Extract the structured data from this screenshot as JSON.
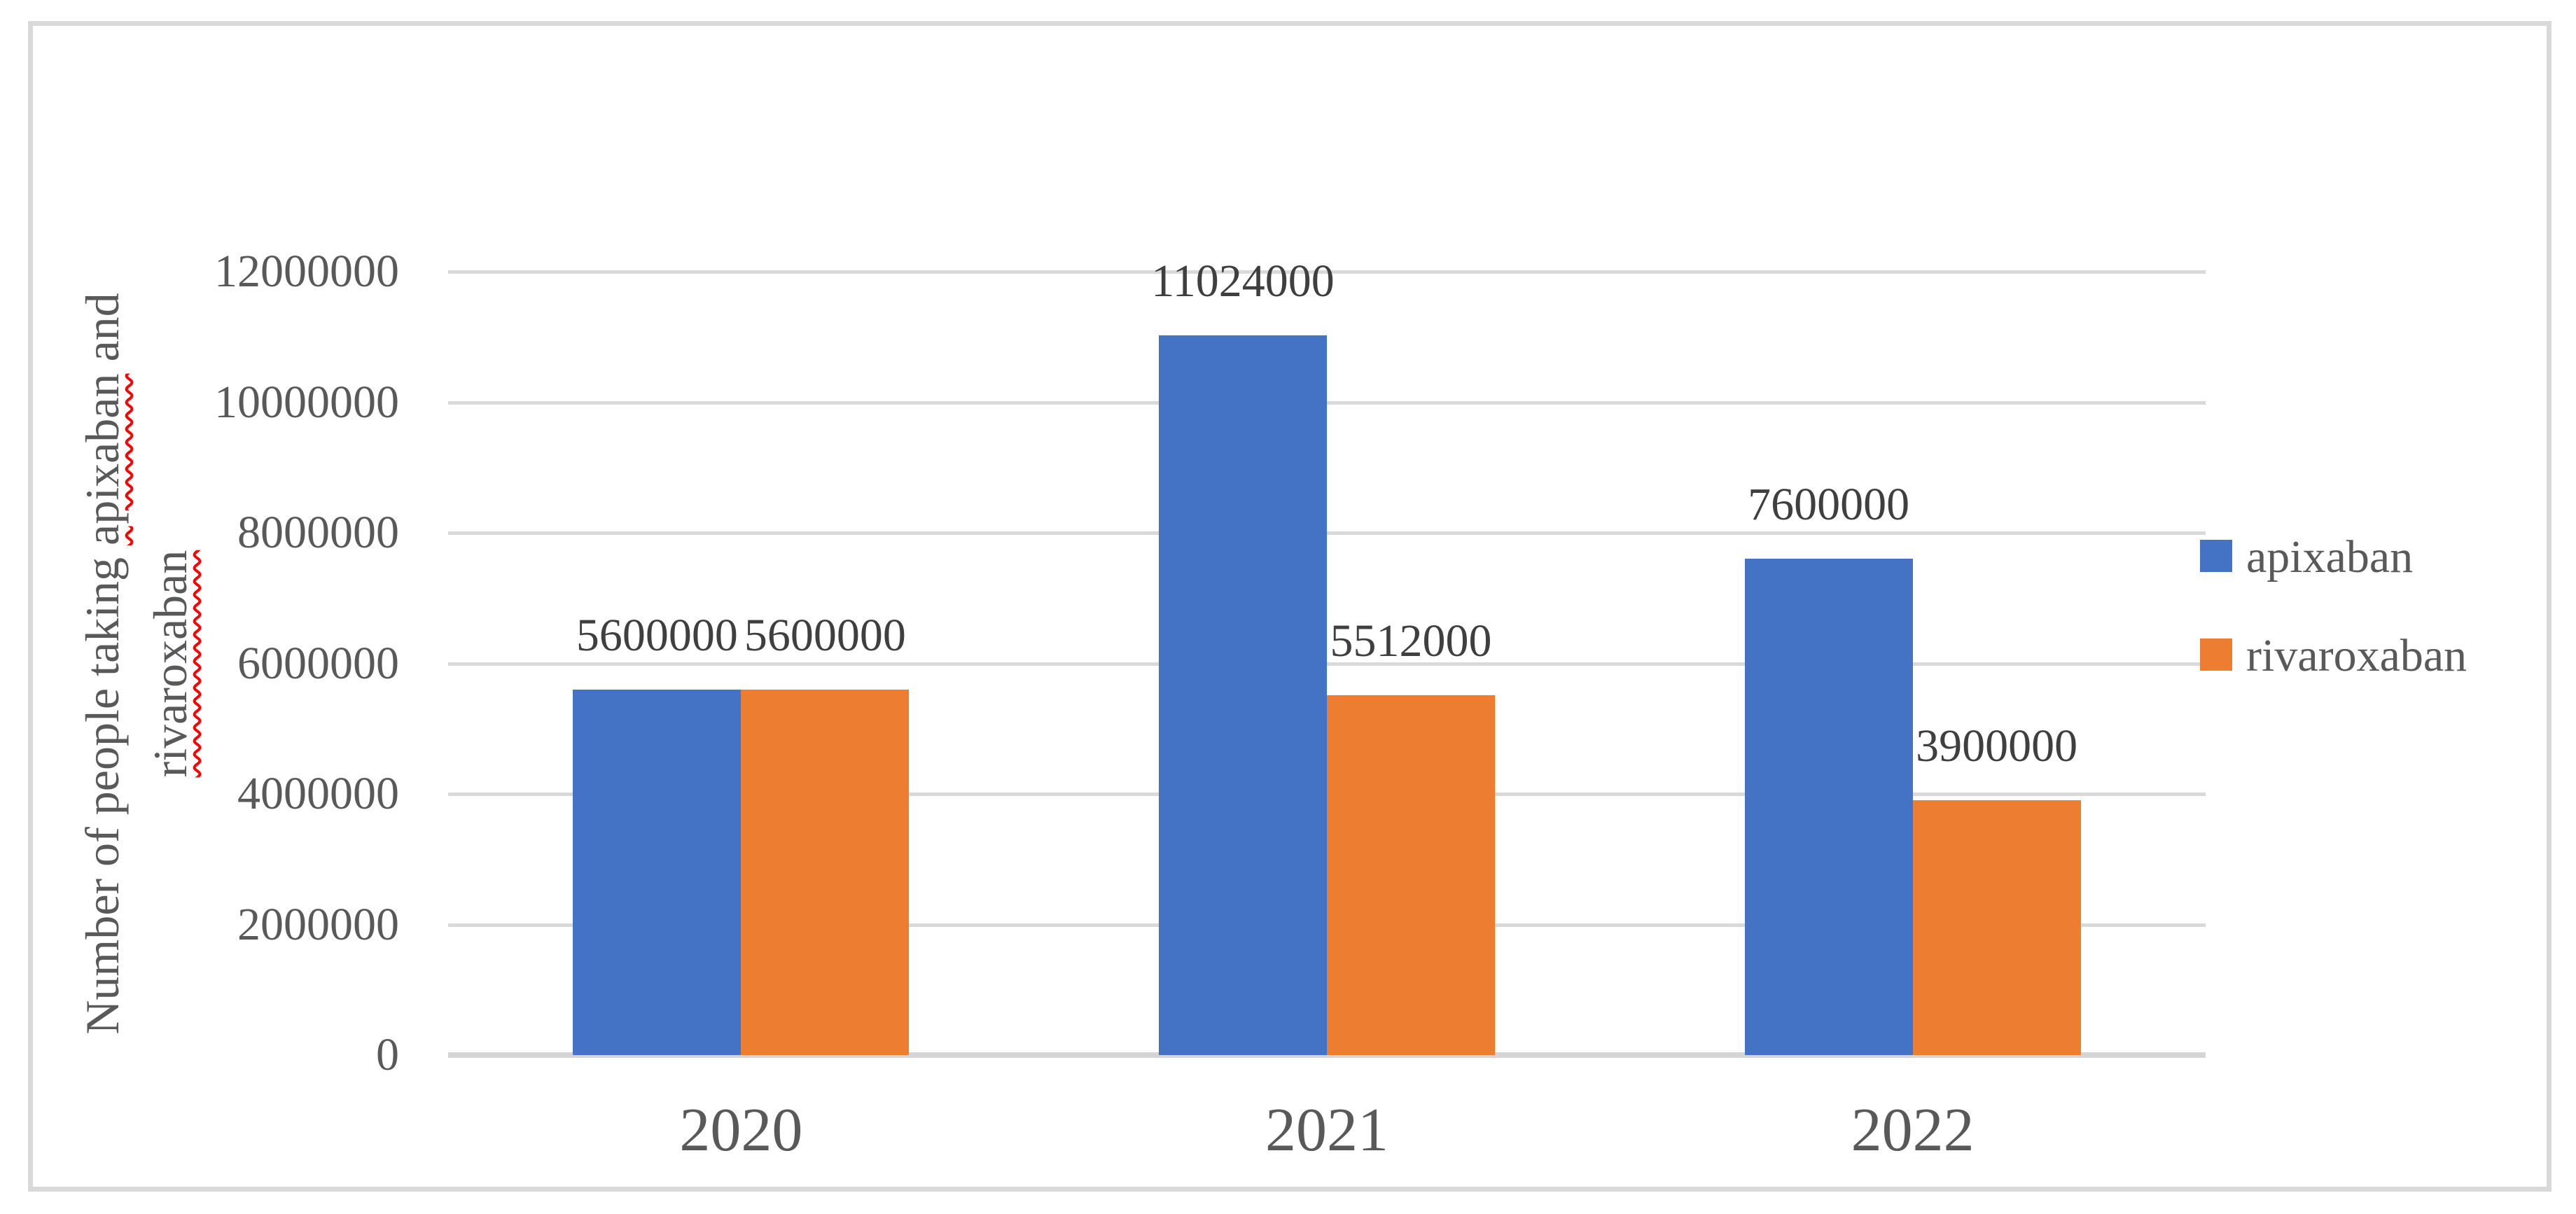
{
  "chart_data": {
    "type": "bar",
    "title": "",
    "categories": [
      "2020",
      "2021",
      "2022"
    ],
    "series": [
      {
        "name": "apixaban",
        "color": "#4472C4",
        "values": [
          5600000,
          11024000,
          7600000
        ],
        "labels": [
          "5600000",
          "11024000",
          "7600000"
        ]
      },
      {
        "name": "rivaroxaban",
        "color": "#ED7D31",
        "values": [
          5600000,
          5512000,
          3900000
        ],
        "labels": [
          "5600000",
          "5512000",
          "3900000"
        ]
      }
    ],
    "y_axis": {
      "min": 0,
      "max": 12000000,
      "step": 2000000,
      "tick_labels": [
        "0",
        "2000000",
        "4000000",
        "6000000",
        "8000000",
        "10000000",
        "12000000"
      ]
    },
    "ylabel": "Number of people taking apixaban and rivaroxaban",
    "xlabel": "",
    "grid": true,
    "legend_position": "right"
  },
  "y_axis_title": {
    "line1_prefix": "Number of people taking ",
    "line1_word": "apixaban",
    "line1_suffix": " and",
    "line2_word": "rivaroxaban"
  },
  "legend": [
    {
      "label": "apixaban",
      "color": "#4472C4"
    },
    {
      "label": "rivaroxaban",
      "color": "#ED7D31"
    }
  ],
  "colors": {
    "series_apixaban": "#4472C4",
    "series_rivaroxaban": "#ED7D31",
    "gridline": "#D9D9D9",
    "axis_line": "#D5D5D5",
    "tick_text": "#595959",
    "data_label_text": "#3F3F3F",
    "frame_border": "#D9D9D9",
    "spellcheck_underline": "#FF0000"
  }
}
